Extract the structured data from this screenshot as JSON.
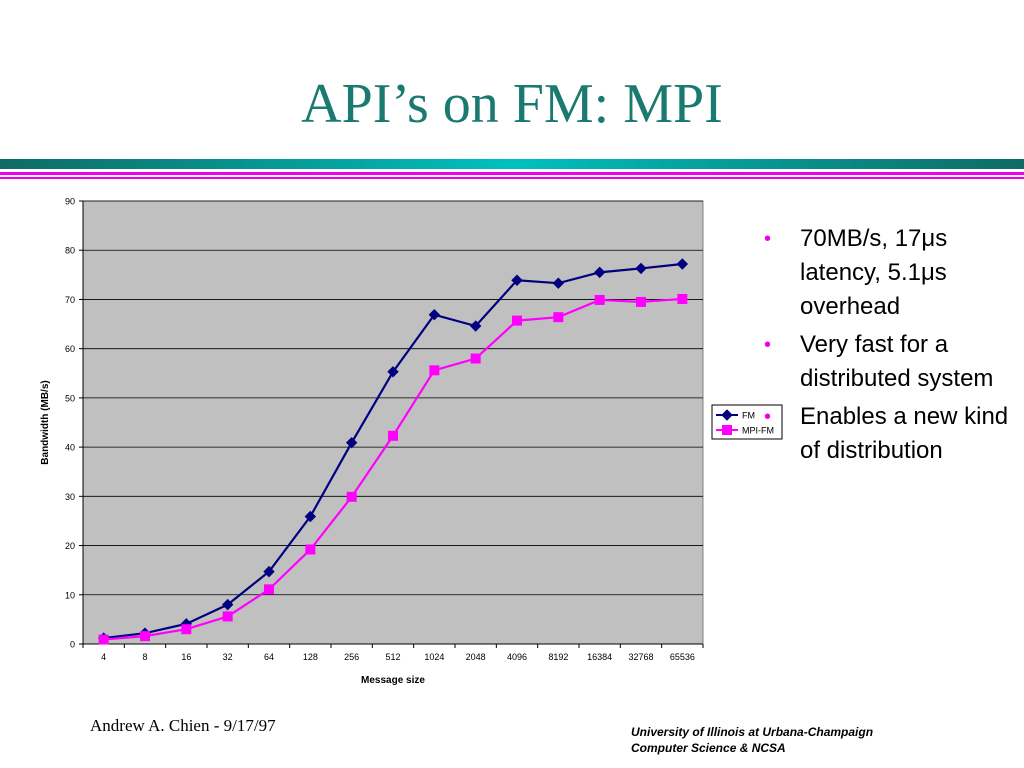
{
  "slide": {
    "title": "API’s on FM: MPI",
    "bullets": [
      "70MB/s, 17μs latency, 5.1μs overhead",
      "Very fast for a distributed system",
      "Enables a new kind of distribution"
    ],
    "footer_left": "Andrew A. Chien - 9/17/97",
    "footer_right_line1": "University of Illinois at Urbana-Champaign",
    "footer_right_line2": "Computer Science & NCSA",
    "colors": {
      "title": "#1a7a70",
      "rule_dark": "#0f6a64",
      "rule_cyan": "#00c0c0",
      "rule_magenta": "#ee00ee",
      "bullet": "#ee00ee"
    }
  },
  "chart_data": {
    "type": "line",
    "categories": [
      "4",
      "8",
      "16",
      "32",
      "64",
      "128",
      "256",
      "512",
      "1024",
      "2048",
      "4096",
      "8192",
      "16384",
      "32768",
      "65536"
    ],
    "series": [
      {
        "name": "FM",
        "color": "#000080",
        "marker": "diamond",
        "values": [
          1.2,
          2.2,
          4.1,
          8.0,
          14.7,
          25.9,
          40.9,
          55.3,
          66.9,
          64.6,
          73.9,
          73.3,
          75.5,
          76.3,
          77.2
        ]
      },
      {
        "name": "MPI-FM",
        "color": "#ff00ff",
        "marker": "square",
        "values": [
          0.9,
          1.6,
          3.0,
          5.6,
          11.1,
          19.2,
          29.9,
          42.3,
          55.6,
          58.0,
          65.7,
          66.4,
          69.9,
          69.5,
          70.1
        ]
      }
    ],
    "xlabel": "Message size",
    "ylabel": "Bandwidth (MB/s)",
    "ylim": [
      0,
      90
    ],
    "yticks": [
      0,
      10,
      20,
      30,
      40,
      50,
      60,
      70,
      80,
      90
    ],
    "grid": true,
    "plot_background": "#c0c0c0",
    "legend_placement": "right"
  }
}
